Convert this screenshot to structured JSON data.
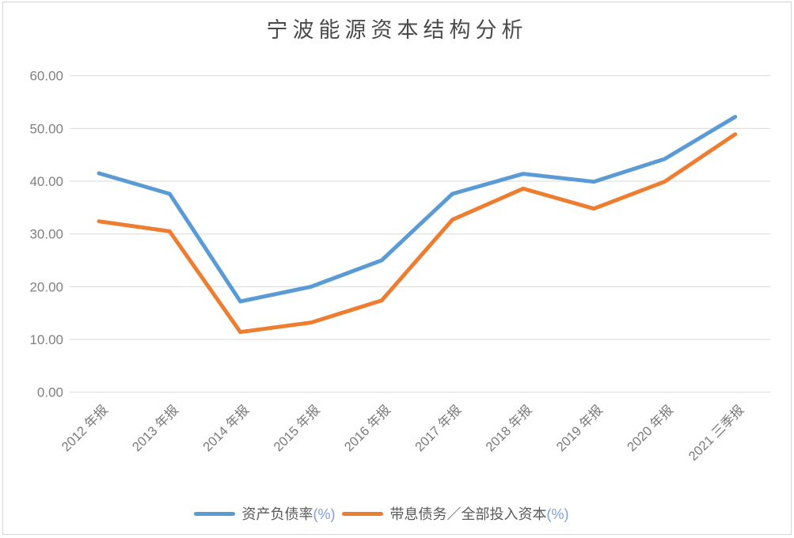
{
  "chart_data": {
    "type": "line",
    "title": "宁波能源资本结构分析",
    "categories": [
      "2012 年报",
      "2013 年报",
      "2014 年报",
      "2015 年报",
      "2016 年报",
      "2017 年报",
      "2018 年报",
      "2019 年报",
      "2020 年报",
      "2021 三季报"
    ],
    "series": [
      {
        "name": "资产负债率(%)",
        "label_text": "资产负债率",
        "label_unit": "(%)",
        "color": "#5B9BD5",
        "values": [
          41.5,
          37.6,
          17.2,
          20.0,
          25.0,
          37.6,
          41.4,
          39.9,
          44.2,
          52.2
        ]
      },
      {
        "name": "带息债务／全部投入资本(%)",
        "label_text": "带息债务／全部投入资本",
        "label_unit": "(%)",
        "color": "#ED7D31",
        "values": [
          32.4,
          30.5,
          11.4,
          13.2,
          17.4,
          32.7,
          38.6,
          34.8,
          39.9,
          48.9
        ]
      }
    ],
    "xlabel": "",
    "ylabel": "",
    "ylim": [
      0,
      60
    ],
    "ytick_interval": 10,
    "ytick_labels": [
      "0.00",
      "10.00",
      "20.00",
      "30.00",
      "40.00",
      "50.00",
      "60.00"
    ],
    "grid": true,
    "legend_position": "bottom",
    "colors": {
      "gridline": "#d9d9d9",
      "axis_text": "#808080",
      "title_text": "#4a4a4a",
      "legend_text": "#595959",
      "legend_unit_text": "#7f9fd6",
      "frame_border": "#d6d6d6"
    }
  }
}
